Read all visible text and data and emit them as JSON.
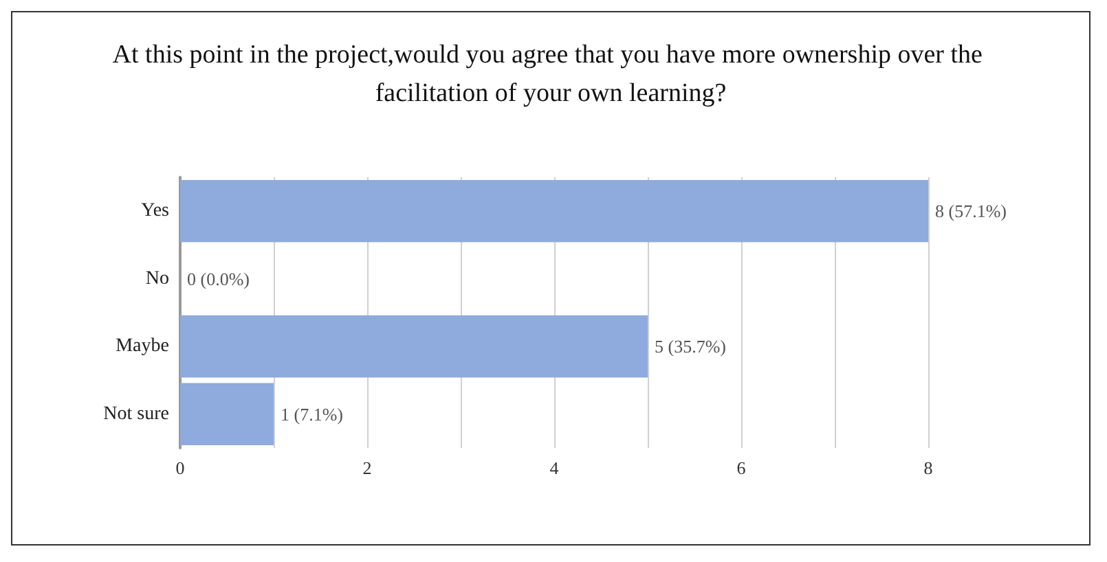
{
  "chart_data": {
    "type": "bar",
    "orientation": "horizontal",
    "title": "At this point in the project,would you agree that you have more ownership over the facilitation of your own learning?",
    "categories": [
      "Yes",
      "No",
      "Maybe",
      "Not sure"
    ],
    "values": [
      8,
      0,
      5,
      1
    ],
    "color": "#8faadc",
    "value_labels": [
      "8 (57.1%)",
      "0 (0.0%)",
      "5 (35.7%)",
      "1 (7.1%)"
    ],
    "xlim": [
      0,
      8
    ],
    "xticks": [
      0,
      {
        "value": 1,
        "label": null
      },
      2,
      {
        "value": 3,
        "label": null
      },
      4,
      {
        "value": 5,
        "label": null
      },
      6,
      {
        "value": 7,
        "label": null
      },
      8
    ],
    "grid": "x"
  }
}
